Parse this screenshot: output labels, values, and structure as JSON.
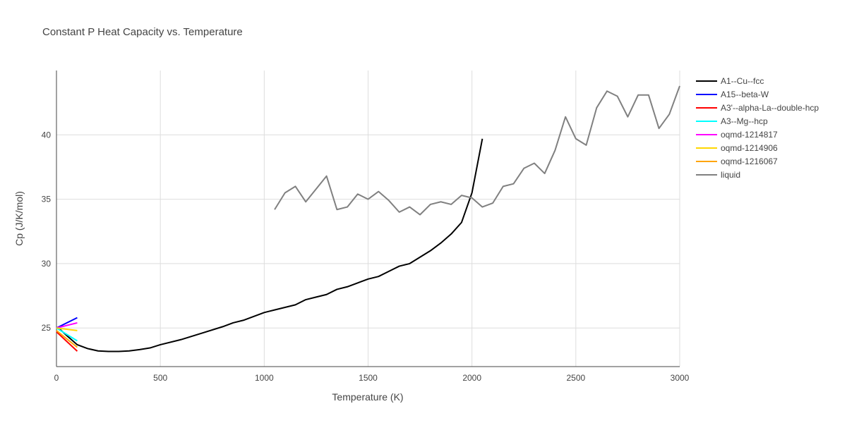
{
  "chart_data": {
    "type": "line",
    "title": "Constant P Heat Capacity vs. Temperature",
    "xlabel": "Temperature (K)",
    "ylabel": "Cp (J/K/mol)",
    "xlim": [
      0,
      3000
    ],
    "ylim": [
      22,
      45
    ],
    "xticks": [
      0,
      500,
      1000,
      1500,
      2000,
      2500,
      3000
    ],
    "yticks": [
      25,
      30,
      35,
      40
    ],
    "grid": true,
    "legend_position": "right",
    "series": [
      {
        "name": "A1--Cu--fcc",
        "color": "#000000",
        "x": [
          10,
          50,
          100,
          150,
          200,
          250,
          300,
          350,
          400,
          450,
          500,
          600,
          700,
          800,
          850,
          900,
          950,
          1000,
          1050,
          1100,
          1150,
          1200,
          1250,
          1300,
          1350,
          1400,
          1450,
          1500,
          1550,
          1600,
          1650,
          1700,
          1750,
          1800,
          1850,
          1900,
          1950,
          2000,
          2050
        ],
        "y": [
          25.0,
          24.4,
          23.7,
          23.4,
          23.22,
          23.18,
          23.18,
          23.22,
          23.32,
          23.45,
          23.7,
          24.1,
          24.6,
          25.1,
          25.4,
          25.6,
          25.9,
          26.2,
          26.4,
          26.6,
          26.8,
          27.2,
          27.4,
          27.6,
          28.0,
          28.2,
          28.5,
          28.8,
          29.0,
          29.4,
          29.8,
          30.0,
          30.5,
          31.0,
          31.6,
          32.3,
          33.2,
          35.5,
          39.7
        ]
      },
      {
        "name": "A15--beta-W",
        "color": "#0000ff",
        "x": [
          0,
          100
        ],
        "y": [
          25.0,
          25.8
        ]
      },
      {
        "name": "A3'--alpha-La--double-hcp",
        "color": "#ff0000",
        "x": [
          0,
          100
        ],
        "y": [
          24.7,
          23.2
        ]
      },
      {
        "name": "A3--Mg--hcp",
        "color": "#00ffff",
        "x": [
          0,
          100
        ],
        "y": [
          25.0,
          24.0
        ]
      },
      {
        "name": "oqmd-1214817",
        "color": "#ff00ff",
        "x": [
          0,
          100
        ],
        "y": [
          25.0,
          25.4
        ]
      },
      {
        "name": "oqmd-1214906",
        "color": "#ffd700",
        "x": [
          0,
          100
        ],
        "y": [
          25.0,
          24.8
        ]
      },
      {
        "name": "oqmd-1216067",
        "color": "#ffa500",
        "x": [
          0,
          100
        ],
        "y": [
          24.8,
          23.5
        ]
      },
      {
        "name": "liquid",
        "color": "#808080",
        "x": [
          1050,
          1100,
          1150,
          1200,
          1250,
          1300,
          1350,
          1400,
          1450,
          1500,
          1550,
          1600,
          1650,
          1700,
          1750,
          1800,
          1850,
          1900,
          1950,
          2000,
          2050,
          2100,
          2150,
          2200,
          2250,
          2300,
          2350,
          2400,
          2450,
          2500,
          2550,
          2600,
          2650,
          2700,
          2750,
          2800,
          2850,
          2900,
          2950,
          3000
        ],
        "y": [
          34.2,
          35.5,
          36.0,
          34.8,
          35.8,
          36.8,
          34.2,
          34.4,
          35.4,
          35.0,
          35.6,
          34.9,
          34.0,
          34.4,
          33.8,
          34.6,
          34.8,
          34.6,
          35.3,
          35.1,
          34.4,
          34.7,
          36.0,
          36.2,
          37.4,
          37.8,
          37.0,
          38.8,
          41.4,
          39.7,
          39.2,
          42.1,
          43.4,
          43.0,
          41.4,
          43.1,
          43.1,
          40.5,
          41.6,
          43.8
        ]
      }
    ]
  }
}
